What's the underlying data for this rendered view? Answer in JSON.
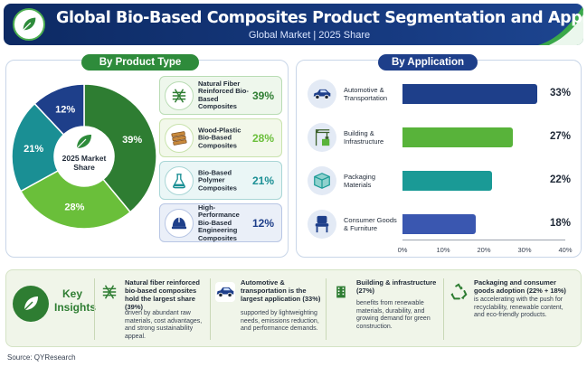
{
  "header": {
    "title": "Global Bio-Based Composites Product Segmentation and Application Structure",
    "subtitle": "Global Market | 2025 Share"
  },
  "product_section": {
    "title": "By Product Type"
  },
  "application_section": {
    "title": "By Application"
  },
  "donut_center": "2025 Market Share",
  "products": [
    {
      "label": "Natural Fiber Reinforced Bio-Based Composites",
      "percent": "39%",
      "icon": "fiber-weave-icon",
      "color": "#2e7d32"
    },
    {
      "label": "Wood-Plastic Bio-Based Composites",
      "percent": "28%",
      "icon": "wood-plank-icon",
      "color": "#6abf3a"
    },
    {
      "label": "Bio-Based Polymer Composites",
      "percent": "21%",
      "icon": "flask-icon",
      "color": "#1a8f94"
    },
    {
      "label": "High-Performance Bio-Based Engineering Composites",
      "percent": "12%",
      "icon": "helmet-icon",
      "color": "#1e3f8a"
    }
  ],
  "applications": [
    {
      "label": "Automotive & Transportation",
      "percent": "33%",
      "icon": "car-icon",
      "color": "#1e3f8a"
    },
    {
      "label": "Building & Infrastructure",
      "percent": "27%",
      "icon": "crane-icon",
      "color": "#58b33a"
    },
    {
      "label": "Packaging Materials",
      "percent": "22%",
      "icon": "box-icon",
      "color": "#1a9a96"
    },
    {
      "label": "Consumer Goods & Furniture",
      "percent": "18%",
      "icon": "chair-icon",
      "color": "#3a57b0"
    }
  ],
  "chart_data": [
    {
      "type": "pie",
      "title": "By Product Type",
      "categories": [
        "Natural Fiber Reinforced Bio-Based Composites",
        "Wood-Plastic Bio-Based Composites",
        "Bio-Based Polymer Composites",
        "High-Performance Bio-Based Engineering Composites"
      ],
      "values": [
        39,
        28,
        21,
        12
      ],
      "colors": [
        "#2e7d32",
        "#6abf3a",
        "#1a8f94",
        "#1e3f8a"
      ]
    },
    {
      "type": "bar",
      "title": "By Application",
      "orientation": "horizontal",
      "categories": [
        "Automotive & Transportation",
        "Building & Infrastructure",
        "Packaging Materials",
        "Consumer Goods & Furniture"
      ],
      "values": [
        33,
        27,
        22,
        18
      ],
      "xlim": [
        0,
        40
      ],
      "ticks": [
        "0%",
        "10%",
        "20%",
        "30%",
        "40%"
      ],
      "colors": [
        "#1e3f8a",
        "#58b33a",
        "#1a9a96",
        "#3a57b0"
      ]
    }
  ],
  "insights": {
    "label": "Key Insights",
    "items": [
      {
        "head": "Natural fiber reinforced bio-based composites hold the largest share (39%)",
        "body": "driven by abundant raw materials, cost advantages, and strong sustainability appeal.",
        "icon": "fiber-weave-icon"
      },
      {
        "head": "Automotive & transportation is the largest application (33%)",
        "body": "supported by lightweighting needs, emissions reduction, and performance demands.",
        "icon": "car-icon"
      },
      {
        "head": "Building & infrastructure (27%)",
        "body": "benefits from renewable materials, durability, and growing demand for green construction.",
        "icon": "building-icon"
      },
      {
        "head": "Packaging and consumer goods adoption (22% + 18%)",
        "body": "is accelerating with the push for recyclability, renewable content, and eco-friendly products.",
        "icon": "recycle-icon"
      }
    ]
  },
  "source": "Source: QYResearch"
}
